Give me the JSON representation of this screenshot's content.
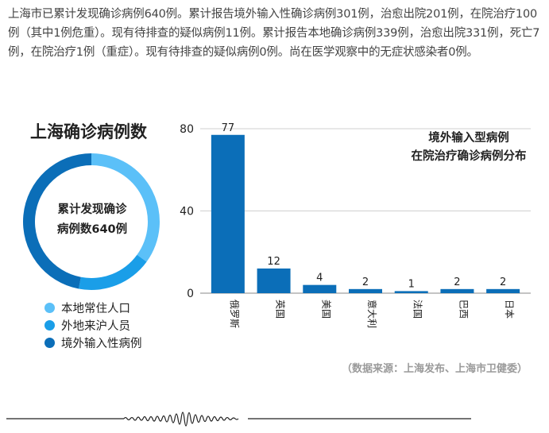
{
  "intro_text": "上海市已累计发现确诊病例640例。累计报告境外输入性确诊病例301例，治愈出院201例，在院治疗100例（其中1例危重）。现有待排查的疑似病例11例。累计报告本地确诊病例339例，治愈出院331例，死亡7例，在院治疗1例（重症）。现有待排查的疑似病例0例。尚在医学观察中的无症状感染者0例。",
  "source": "（数据来源：上海发布、上海市卫健委）",
  "chart_data": [
    {
      "type": "pie",
      "title": "上海确诊病例数",
      "center_label_line1": "累计发现确诊",
      "center_label_line2": "病例数640例",
      "donut": true,
      "legend_position": "bottom-left",
      "slices": [
        {
          "name": "本地常住人口",
          "value": 224,
          "color": "#5bc0f8"
        },
        {
          "name": "外地来沪人员",
          "value": 115,
          "color": "#1a9ee8"
        },
        {
          "name": "境外输入性病例",
          "value": 301,
          "color": "#0b6eb8"
        }
      ]
    },
    {
      "type": "bar",
      "title_line1": "境外输入型病例",
      "title_line2": "在院治疗确诊病例分布",
      "categories": [
        "俄罗斯",
        "英国",
        "美国",
        "意大利",
        "法国",
        "巴西",
        "日本"
      ],
      "values": [
        77,
        12,
        4,
        2,
        1,
        2,
        2
      ],
      "ylim": [
        0,
        80
      ],
      "yticks": [
        0,
        40,
        80
      ],
      "grid": true,
      "bar_color": "#0b6eb8"
    }
  ]
}
